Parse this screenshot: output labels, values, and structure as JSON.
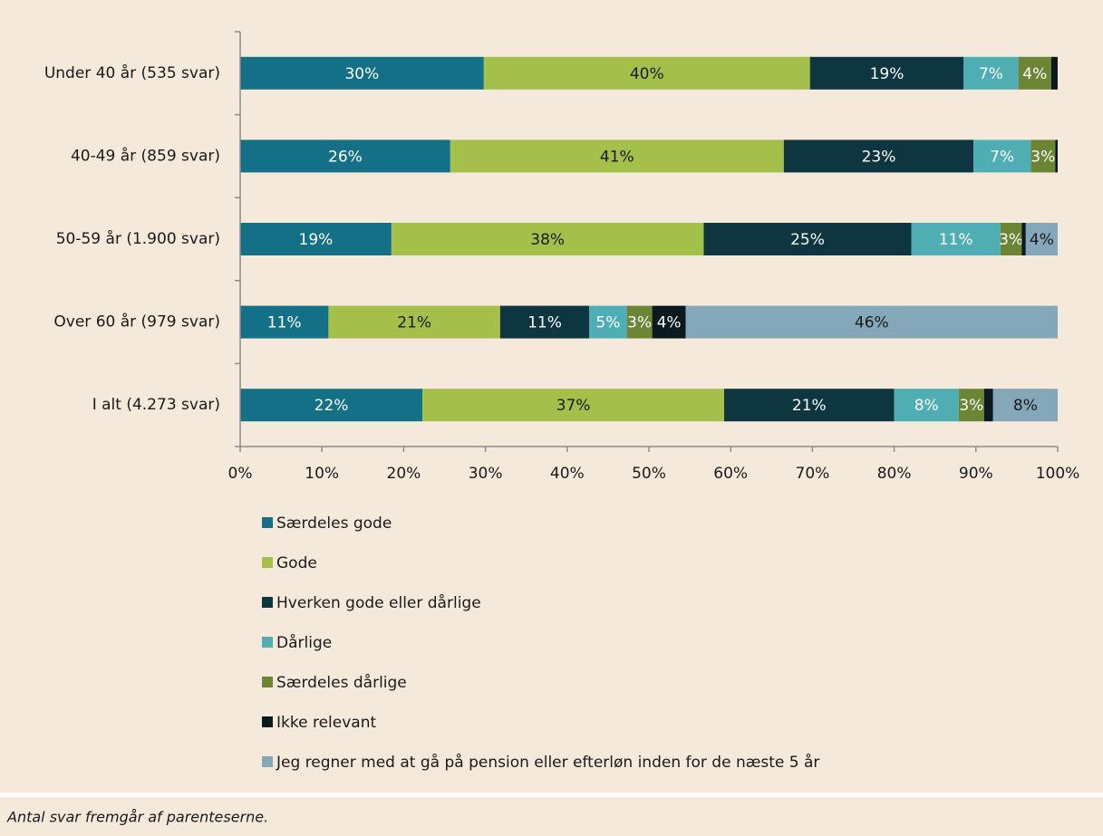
{
  "chart_data": {
    "type": "stacked_barh",
    "categories": [
      "Under 40 år (535 svar)",
      "40-49 år (859 svar)",
      "50-59 år (1.900 svar)",
      "Over 60 år (979 svar)",
      "I alt (4.273 svar)"
    ],
    "series": [
      {
        "name": "Særdeles gode",
        "color": "#137086",
        "values": [
          29.8,
          25.7,
          18.5,
          10.8,
          22.3
        ],
        "value_labels": [
          "30%",
          "26%",
          "19%",
          "11%",
          "22%"
        ]
      },
      {
        "name": "Gode",
        "color": "#a5bf4b",
        "values": [
          39.9,
          40.8,
          38.2,
          21.0,
          36.9
        ],
        "value_labels": [
          "40%",
          "41%",
          "38%",
          "21%",
          "37%"
        ]
      },
      {
        "name": "Hverken gode eller dårlige",
        "color": "#0d3641",
        "values": [
          18.8,
          23.2,
          25.4,
          10.9,
          20.8
        ],
        "value_labels": [
          "19%",
          "23%",
          "25%",
          "11%",
          "21%"
        ]
      },
      {
        "name": "Dårlige",
        "color": "#4faeb3",
        "values": [
          6.7,
          7.0,
          10.9,
          4.6,
          7.9
        ],
        "value_labels": [
          "7%",
          "7%",
          "11%",
          "5%",
          "8%"
        ]
      },
      {
        "name": "Særdeles dårlige",
        "color": "#6b8535",
        "values": [
          4.0,
          3.0,
          2.6,
          3.1,
          3.1
        ],
        "value_labels": [
          "4%",
          "3%",
          "3%",
          "3%",
          "3%"
        ]
      },
      {
        "name": "Ikke relevant",
        "color": "#0a1a1f",
        "values": [
          0.8,
          0.3,
          0.5,
          4.1,
          1.1
        ],
        "value_labels": [
          null,
          null,
          null,
          "4%",
          null
        ]
      },
      {
        "name": "Jeg regner med at gå på pension eller efterløn inden for de næste 5 år",
        "color": "#84a7b9",
        "values": [
          0,
          0,
          3.9,
          45.5,
          7.9
        ],
        "value_labels": [
          null,
          null,
          "4%",
          "46%",
          "8%"
        ]
      }
    ],
    "xlim": [
      0,
      100
    ],
    "xticks": [
      {
        "value": 0,
        "label": "0%"
      },
      {
        "value": 10,
        "label": "10%"
      },
      {
        "value": 20,
        "label": "20%"
      },
      {
        "value": 30,
        "label": "30%"
      },
      {
        "value": 40,
        "label": "40%"
      },
      {
        "value": 50,
        "label": "50%"
      },
      {
        "value": 60,
        "label": "60%"
      },
      {
        "value": 70,
        "label": "70%"
      },
      {
        "value": 80,
        "label": "80%"
      },
      {
        "value": 90,
        "label": "90%"
      },
      {
        "value": 100,
        "label": "100%"
      }
    ],
    "legend": "bottom",
    "note": "Antal svar fremgår af parenteserne."
  }
}
